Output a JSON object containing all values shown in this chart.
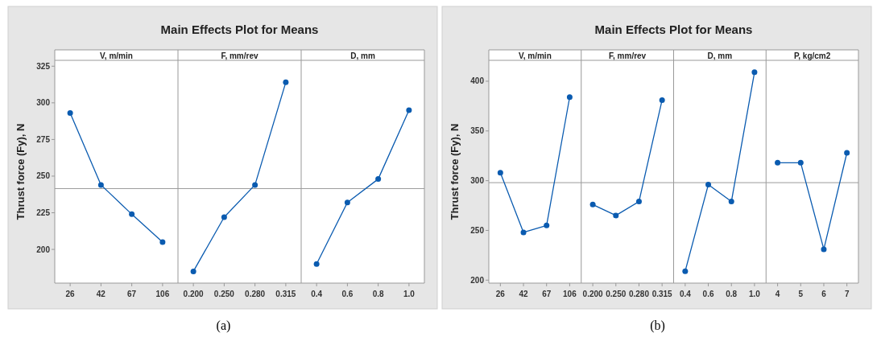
{
  "chart_data": [
    {
      "type": "line",
      "subtitle": "V, m/min",
      "ylabel": "Thrust force (Fy), N",
      "annotations": [
        "(a)"
      ],
      "categories": [
        "26",
        "42",
        "67",
        "106"
      ],
      "series": [
        {
          "color": "#0a5bb0",
          "values": [
            293,
            244,
            224,
            205
          ]
        }
      ],
      "ylim": [
        177,
        329
      ],
      "yticks": [
        200,
        225,
        250,
        275,
        300,
        325
      ],
      "ref_lines": [
        {
          "axis": "y",
          "value": 241.5,
          "color": "#9a9a9a"
        }
      ],
      "marker": "circle",
      "grid": false
    },
    {
      "type": "line",
      "title": "Main Effects Plot for Means",
      "subtitle": "F, mm/rev",
      "categories": [
        "0.200",
        "0.250",
        "0.280",
        "0.315"
      ],
      "series": [
        {
          "color": "#0a5bb0",
          "values": [
            185,
            222,
            244,
            314
          ]
        }
      ],
      "ylim": [
        177,
        329
      ],
      "tick_labels": "x",
      "ref_lines": [
        {
          "axis": "y",
          "value": 241.5,
          "color": "#9a9a9a"
        }
      ],
      "marker": "circle",
      "grid": false
    },
    {
      "type": "line",
      "subtitle": "D, mm",
      "categories": [
        "0.4",
        "0.6",
        "0.8",
        "1.0"
      ],
      "series": [
        {
          "color": "#0a5bb0",
          "values": [
            190,
            232,
            248,
            295
          ]
        }
      ],
      "ylim": [
        177,
        329
      ],
      "tick_labels": "x",
      "ref_lines": [
        {
          "axis": "y",
          "value": 241.5,
          "color": "#9a9a9a"
        }
      ],
      "marker": "circle",
      "grid": false
    },
    {
      "type": "line",
      "subtitle": "V, m/min",
      "ylabel": "Thrust force (Fy), N",
      "annotations": [
        "(b)"
      ],
      "categories": [
        "26",
        "42",
        "67",
        "106"
      ],
      "series": [
        {
          "color": "#0a5bb0",
          "values": [
            308,
            248,
            255,
            384
          ]
        }
      ],
      "ylim": [
        197,
        421
      ],
      "yticks": [
        200,
        250,
        300,
        350,
        400
      ],
      "ref_lines": [
        {
          "axis": "y",
          "value": 298,
          "color": "#9a9a9a"
        }
      ],
      "marker": "circle",
      "grid": false
    },
    {
      "type": "line",
      "title": "Main Effects Plot for Means",
      "subtitle": "F, mm/rev",
      "categories": [
        "0.200",
        "0.250",
        "0.280",
        "0.315"
      ],
      "series": [
        {
          "color": "#0a5bb0",
          "values": [
            276,
            265,
            279,
            381
          ]
        }
      ],
      "ylim": [
        197,
        421
      ],
      "tick_labels": "x",
      "ref_lines": [
        {
          "axis": "y",
          "value": 298,
          "color": "#9a9a9a"
        }
      ],
      "marker": "circle",
      "grid": false
    },
    {
      "type": "line",
      "subtitle": "D, mm",
      "categories": [
        "0.4",
        "0.6",
        "0.8",
        "1.0"
      ],
      "series": [
        {
          "color": "#0a5bb0",
          "values": [
            209,
            296,
            279,
            409
          ]
        }
      ],
      "ylim": [
        197,
        421
      ],
      "tick_labels": "x",
      "ref_lines": [
        {
          "axis": "y",
          "value": 298,
          "color": "#9a9a9a"
        }
      ],
      "marker": "circle",
      "grid": false
    },
    {
      "type": "line",
      "subtitle": "P, kg/cm2",
      "categories": [
        "4",
        "5",
        "6",
        "7"
      ],
      "series": [
        {
          "color": "#0a5bb0",
          "values": [
            318,
            318,
            231,
            328
          ]
        }
      ],
      "ylim": [
        197,
        421
      ],
      "tick_labels": "x",
      "ref_lines": [
        {
          "axis": "y",
          "value": 298,
          "color": "#9a9a9a"
        }
      ],
      "marker": "circle",
      "grid": false
    }
  ]
}
